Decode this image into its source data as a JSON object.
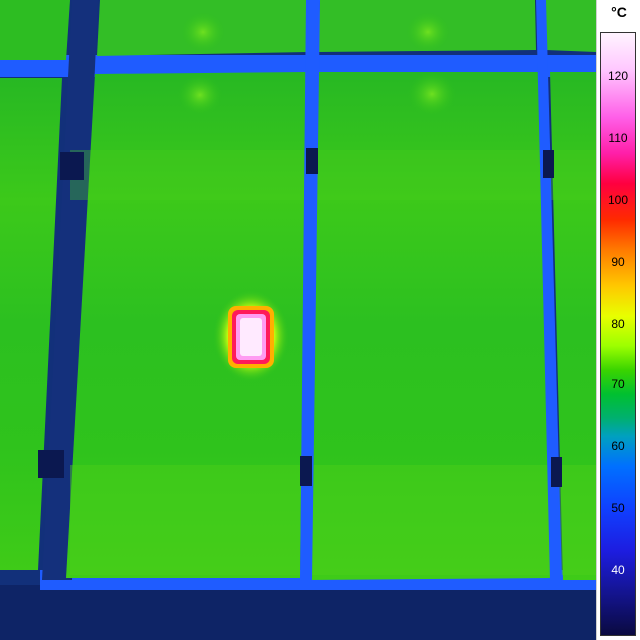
{
  "thermal_image": {
    "scale_unit": "°C",
    "scale_ticks": [
      "120",
      "110",
      "100",
      "90",
      "80",
      "70",
      "60",
      "50",
      "40"
    ],
    "colors": {
      "panel": "#2fc21a",
      "panel_light": "#52d41c",
      "frame": "#1d5cff",
      "ground": "#10226b",
      "hotspot_core": "#ffd6ff",
      "hotspot_ring": "#ff1a66",
      "hotspot_halo": "#e6ff00"
    }
  }
}
